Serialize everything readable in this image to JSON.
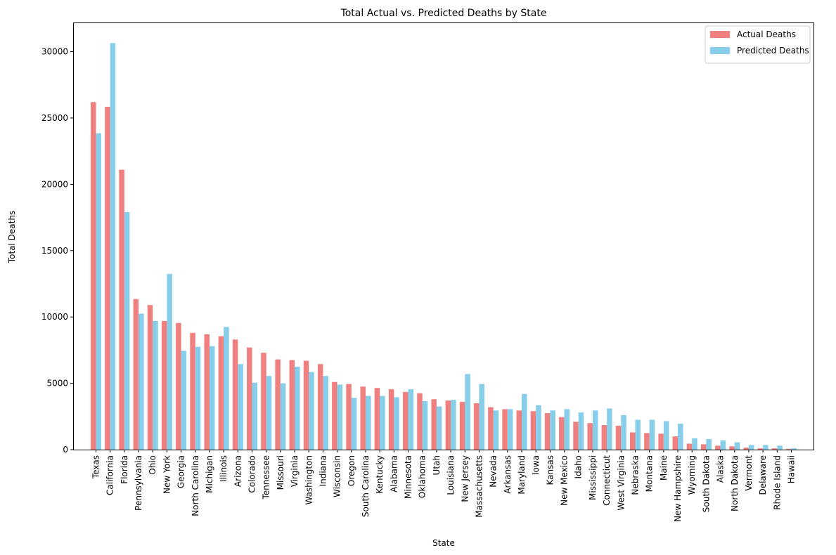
{
  "chart_data": {
    "type": "bar",
    "title": "Total Actual vs. Predicted Deaths by State",
    "xlabel": "State",
    "ylabel": "Total Deaths",
    "ylim": [
      0,
      32200
    ],
    "yticks": [
      0,
      5000,
      10000,
      15000,
      20000,
      25000,
      30000
    ],
    "legend_position": "top-right",
    "categories": [
      "Texas",
      "California",
      "Florida",
      "Pennsylvania",
      "Ohio",
      "New York",
      "Georgia",
      "North Carolina",
      "Michigan",
      "Illinois",
      "Arizona",
      "Colorado",
      "Tennessee",
      "Missouri",
      "Virginia",
      "Washington",
      "Indiana",
      "Wisconsin",
      "Oregon",
      "South Carolina",
      "Kentucky",
      "Alabama",
      "Minnesota",
      "Oklahoma",
      "Utah",
      "Louisiana",
      "New Jersey",
      "Massachusetts",
      "Nevada",
      "Arkansas",
      "Maryland",
      "Iowa",
      "Kansas",
      "New Mexico",
      "Idaho",
      "Mississippi",
      "Connecticut",
      "West Virginia",
      "Nebraska",
      "Montana",
      "Maine",
      "New Hampshire",
      "Wyoming",
      "South Dakota",
      "Alaska",
      "North Dakota",
      "Vermont",
      "Delaware",
      "Rhode Island",
      "Hawaii"
    ],
    "series": [
      {
        "name": "Actual Deaths",
        "color": "#F08080",
        "values": [
          26200,
          25850,
          21100,
          11350,
          10900,
          9700,
          9550,
          8800,
          8700,
          8550,
          8300,
          7700,
          7300,
          6800,
          6750,
          6700,
          6450,
          5100,
          4950,
          4750,
          4650,
          4550,
          4350,
          4250,
          3800,
          3700,
          3600,
          3500,
          3200,
          3050,
          2950,
          2900,
          2750,
          2450,
          2100,
          2000,
          1850,
          1800,
          1300,
          1250,
          1200,
          1000,
          450,
          400,
          300,
          250,
          150,
          100,
          100,
          50
        ]
      },
      {
        "name": "Predicted Deaths",
        "color": "#87CEEB",
        "values": [
          23850,
          30650,
          17900,
          10250,
          9700,
          13250,
          7450,
          7750,
          7800,
          9250,
          6450,
          5050,
          5550,
          5000,
          6250,
          5850,
          5550,
          4900,
          3900,
          4050,
          4050,
          3950,
          4550,
          3650,
          3250,
          3750,
          5700,
          4950,
          2950,
          3050,
          4200,
          3350,
          2950,
          3050,
          2800,
          2950,
          3100,
          2600,
          2250,
          2250,
          2150,
          1950,
          850,
          800,
          700,
          550,
          350,
          350,
          300,
          100
        ]
      }
    ]
  }
}
